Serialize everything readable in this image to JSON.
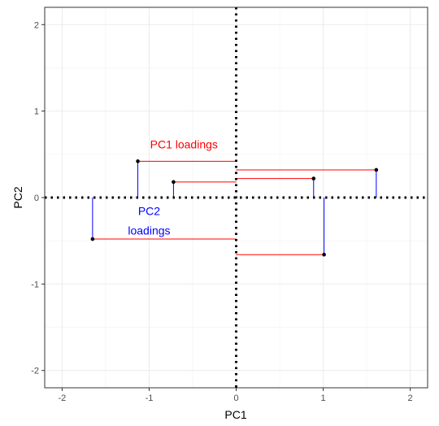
{
  "chart_data": {
    "type": "scatter",
    "xlabel": "PC1",
    "ylabel": "PC2",
    "xlim": [
      -2.2,
      2.2
    ],
    "ylim": [
      -2.2,
      2.2
    ],
    "x_ticks": [
      -2,
      -1,
      0,
      1,
      2
    ],
    "x_tick_labels": [
      "-2",
      "-1",
      "0",
      "1",
      "2"
    ],
    "y_ticks": [
      -2,
      -1,
      0,
      1,
      2
    ],
    "y_tick_labels": [
      "-2",
      "-1",
      "0",
      "1",
      "2"
    ],
    "grid": true,
    "points": [
      {
        "x": -1.13,
        "y": 0.42
      },
      {
        "x": -0.72,
        "y": 0.18
      },
      {
        "x": -1.65,
        "y": -0.48
      },
      {
        "x": 0.89,
        "y": 0.22
      },
      {
        "x": 1.61,
        "y": 0.32
      },
      {
        "x": 1.01,
        "y": -0.66
      }
    ],
    "reference_lines": {
      "x": 0,
      "y": 0,
      "style": "dotted"
    },
    "annotations": [
      {
        "text": "PC1 loadings",
        "x": -0.6,
        "y": 0.57,
        "color": "#ff0000"
      },
      {
        "text": "PC2",
        "x": -1.0,
        "y": -0.2,
        "color": "#0000ff"
      },
      {
        "text": "loadings",
        "x": -1.0,
        "y": -0.43,
        "color": "#0000ff"
      }
    ],
    "pc1_loading_color": "#ff0000",
    "pc2_loading_color": "#0000ff"
  }
}
